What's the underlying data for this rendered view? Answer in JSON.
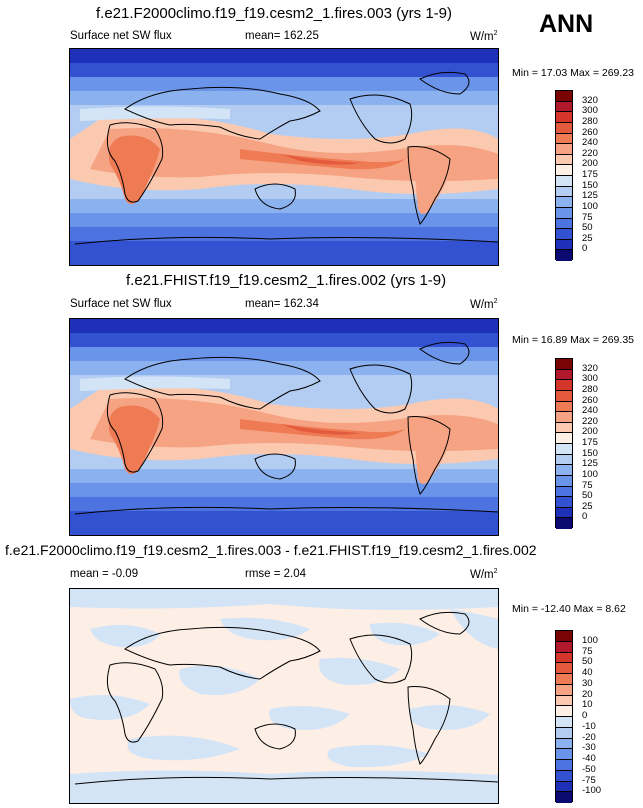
{
  "season": "ANN",
  "panels": [
    {
      "title": "f.e21.F2000climo.f19_f19.cesm2_1.fires.003 (yrs 1-9)",
      "left_label": "Surface net SW flux",
      "mid_label": "mean= 162.25",
      "units": "W/m",
      "units_exp": "2",
      "minmax": "Min =  17.03 Max = 269.23",
      "levels": [
        "320",
        "300",
        "280",
        "260",
        "240",
        "220",
        "200",
        "175",
        "150",
        "125",
        "100",
        "75",
        "50",
        "25",
        "0"
      ],
      "colors": [
        "#7a0403",
        "#b2182b",
        "#d6362a",
        "#e35a3c",
        "#ef7b55",
        "#f6a383",
        "#fbc9b0",
        "#fdeee6",
        "#d3e4f6",
        "#b3cdf2",
        "#8cb1ef",
        "#6a93ea",
        "#4d73e0",
        "#3352d2",
        "#1e30b8",
        "#0a0a70"
      ]
    },
    {
      "title": "f.e21.FHIST.f19_f19.cesm2_1.fires.002 (yrs 1-9)",
      "left_label": "Surface net SW flux",
      "mid_label": "mean= 162.34",
      "units": "W/m",
      "units_exp": "2",
      "minmax": "Min =  16.89 Max = 269.35",
      "levels": [
        "320",
        "300",
        "280",
        "260",
        "240",
        "220",
        "200",
        "175",
        "150",
        "125",
        "100",
        "75",
        "50",
        "25",
        "0"
      ],
      "colors": [
        "#7a0403",
        "#b2182b",
        "#d6362a",
        "#e35a3c",
        "#ef7b55",
        "#f6a383",
        "#fbc9b0",
        "#fdeee6",
        "#d3e4f6",
        "#b3cdf2",
        "#8cb1ef",
        "#6a93ea",
        "#4d73e0",
        "#3352d2",
        "#1e30b8",
        "#0a0a70"
      ]
    },
    {
      "title": "f.e21.F2000climo.f19_f19.cesm2_1.fires.003 - f.e21.FHIST.f19_f19.cesm2_1.fires.002",
      "left_label": "mean =  -0.09",
      "mid_label": "rmse =   2.04",
      "units": "W/m",
      "units_exp": "2",
      "minmax": "Min = -12.40 Max =   8.62",
      "levels": [
        "100",
        "75",
        "50",
        "40",
        "30",
        "20",
        "10",
        "0",
        "-10",
        "-20",
        "-30",
        "-40",
        "-50",
        "-75",
        "-100"
      ],
      "colors": [
        "#7a0403",
        "#b2182b",
        "#d6362a",
        "#e35a3c",
        "#ef7b55",
        "#f6a383",
        "#fbc9b0",
        "#fdeee6",
        "#d3e4f6",
        "#b3cdf2",
        "#8cb1ef",
        "#6a93ea",
        "#4d73e0",
        "#3352d2",
        "#1e30b8",
        "#0a0a70"
      ]
    }
  ],
  "chart_data": [
    {
      "type": "heatmap",
      "title": "f.e21.F2000climo.f19_f19.cesm2_1.fires.003 (yrs 1-9)",
      "variable": "Surface net SW flux",
      "units": "W/m2",
      "mean": 162.25,
      "min": 17.03,
      "max": 269.23,
      "levels": [
        0,
        25,
        50,
        75,
        100,
        125,
        150,
        175,
        200,
        220,
        240,
        260,
        280,
        300,
        320
      ]
    },
    {
      "type": "heatmap",
      "title": "f.e21.FHIST.f19_f19.cesm2_1.fires.002 (yrs 1-9)",
      "variable": "Surface net SW flux",
      "units": "W/m2",
      "mean": 162.34,
      "min": 16.89,
      "max": 269.35,
      "levels": [
        0,
        25,
        50,
        75,
        100,
        125,
        150,
        175,
        200,
        220,
        240,
        260,
        280,
        300,
        320
      ]
    },
    {
      "type": "heatmap",
      "title": "f.e21.F2000climo.f19_f19.cesm2_1.fires.003 - f.e21.FHIST.f19_f19.cesm2_1.fires.002",
      "units": "W/m2",
      "mean": -0.09,
      "rmse": 2.04,
      "min": -12.4,
      "max": 8.62,
      "levels": [
        -100,
        -75,
        -50,
        -40,
        -30,
        -20,
        -10,
        0,
        10,
        20,
        30,
        40,
        50,
        75,
        100
      ]
    }
  ]
}
